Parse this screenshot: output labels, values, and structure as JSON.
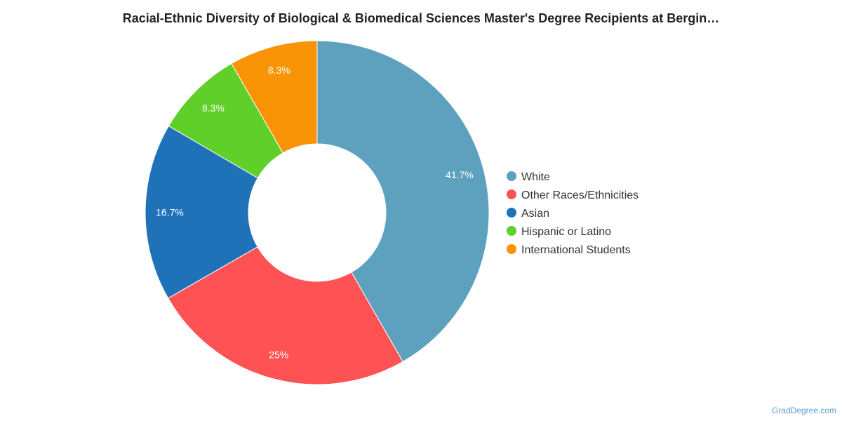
{
  "title": "Racial-Ethnic Diversity of Biological & Biomedical Sciences Master's Degree Recipients at Bergin…",
  "footer": "GradDegree.com",
  "chart_data": {
    "type": "pie",
    "donut": true,
    "title": "Racial-Ethnic Diversity of Biological & Biomedical Sciences Master's Degree Recipients at Bergin…",
    "legend_position": "right",
    "slices": [
      {
        "name": "White",
        "value": 41.7,
        "label": "41.7%",
        "color": "#5ea1bf"
      },
      {
        "name": "Other Races/Ethnicities",
        "value": 25,
        "label": "25%",
        "color": "#ff5254"
      },
      {
        "name": "Asian",
        "value": 16.7,
        "label": "16.7%",
        "color": "#1f72b8"
      },
      {
        "name": "Hispanic or Latino",
        "value": 8.3,
        "label": "8.3%",
        "color": "#60cf29"
      },
      {
        "name": "International Students",
        "value": 8.3,
        "label": "8.3%",
        "color": "#f89406"
      }
    ]
  }
}
